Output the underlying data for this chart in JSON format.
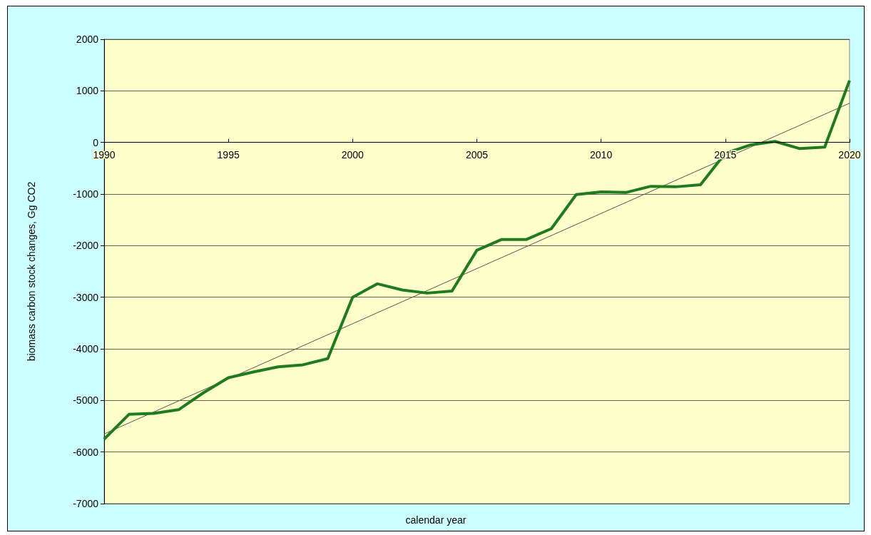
{
  "chart_data": {
    "type": "line",
    "xlabel": "calendar year",
    "ylabel": "biomass carbon stock changes, Gg CO2",
    "xlim": [
      1990,
      2020
    ],
    "xticks": [
      1990,
      1995,
      2000,
      2005,
      2010,
      2015,
      2020
    ],
    "ylim": [
      -7000,
      2000
    ],
    "yticks": [
      -7000,
      -6000,
      -5000,
      -4000,
      -3000,
      -2000,
      -1000,
      0,
      1000,
      2000
    ],
    "grid": "y",
    "marker": "none",
    "series": [
      {
        "color": "#1e7b1e",
        "x": [
          1990,
          1991,
          1992,
          1993,
          1994,
          1995,
          1996,
          1997,
          1998,
          1999,
          2000,
          2001,
          2002,
          2003,
          2004,
          2005,
          2006,
          2007,
          2008,
          2009,
          2010,
          2011,
          2012,
          2013,
          2014,
          2015,
          2016,
          2017,
          2018,
          2019,
          2020
        ],
        "values": [
          -5750,
          -5270,
          -5250,
          -5180,
          -4850,
          -4560,
          -4450,
          -4350,
          -4310,
          -4190,
          -3000,
          -2740,
          -2860,
          -2920,
          -2880,
          -2090,
          -1880,
          -1880,
          -1670,
          -1010,
          -960,
          -970,
          -850,
          -860,
          -820,
          -210,
          -50,
          20,
          -120,
          -90,
          1200
        ]
      },
      {
        "color": "#555555",
        "x": [
          1990,
          2020
        ],
        "values": [
          -5650,
          760
        ]
      }
    ]
  }
}
